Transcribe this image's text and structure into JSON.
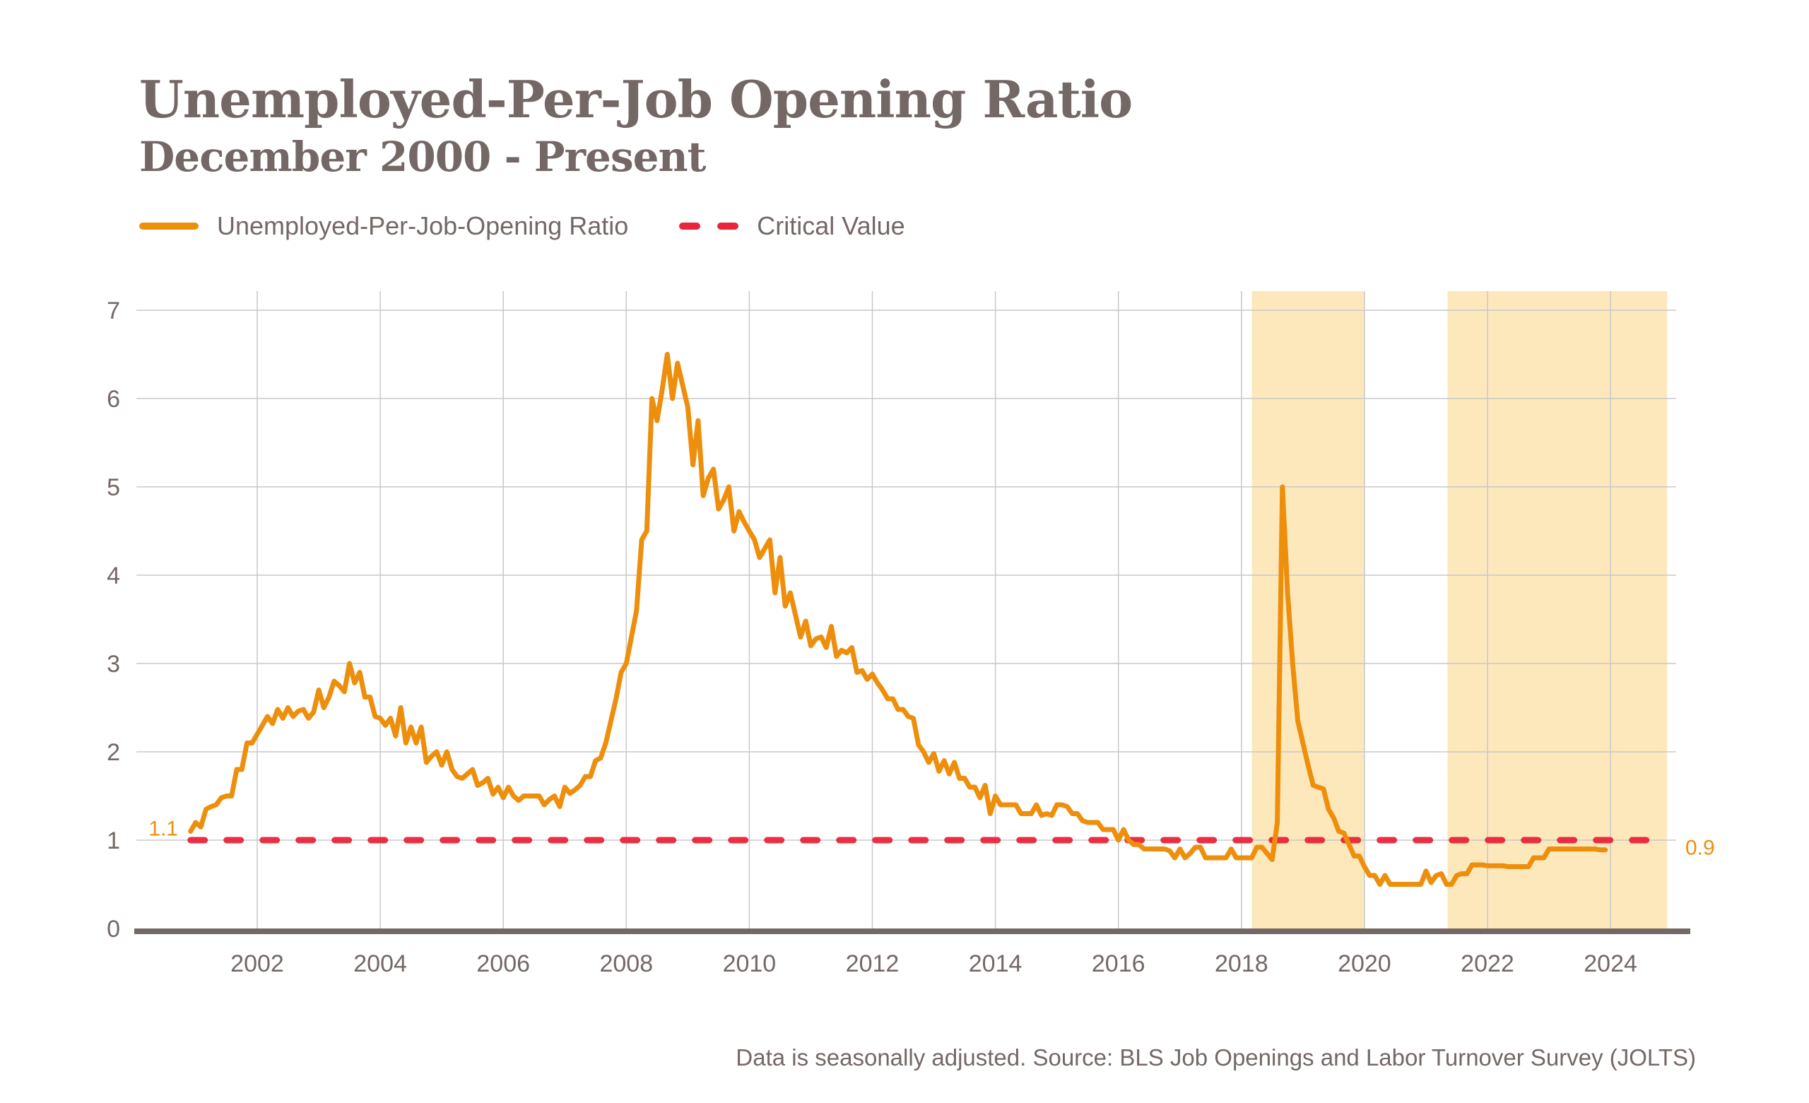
{
  "header": {
    "title": "Unemployed-Per-Job Opening Ratio",
    "subtitle": "December 2000 - Present"
  },
  "legend": {
    "items": [
      {
        "label": "Unemployed-Per-Job-Opening Ratio",
        "style": "solid",
        "color": "#ED8F0C"
      },
      {
        "label": "Critical Value",
        "style": "dashed",
        "color": "#E8253A"
      }
    ]
  },
  "footer": {
    "source": "Data is seasonally adjusted. Source: BLS Job Openings and Labor Turnover Survey (JOLTS)"
  },
  "colors": {
    "series": "#ED8F0C",
    "critical": "#E8253A",
    "shade": "#FDE8BC",
    "grid": "#C8C8C8",
    "axis": "#746866",
    "text": "#746866"
  },
  "chart_data": {
    "type": "line",
    "title": "Unemployed-Per-Job Opening Ratio",
    "subtitle": "December 2000 - Present",
    "xlabel": "",
    "ylabel": "",
    "xlim": [
      2000.75,
      2025.05
    ],
    "ylim": [
      0,
      7
    ],
    "x_ticks": [
      2002,
      2004,
      2006,
      2008,
      2010,
      2012,
      2014,
      2016,
      2018,
      2020,
      2022,
      2024
    ],
    "x_tick_labels": [
      "2002",
      "2004",
      "2006",
      "2008",
      "2010",
      "2012",
      "2014",
      "2016",
      "2018",
      "2020",
      "2022",
      "2024"
    ],
    "y_ticks": [
      0,
      1,
      2,
      3,
      4,
      5,
      6,
      7
    ],
    "y_tick_labels": [
      "0",
      "1",
      "2",
      "3",
      "4",
      "5",
      "6",
      "7"
    ],
    "grid": true,
    "legend_position": "top-left",
    "start": {
      "year": 2000,
      "month": 12
    },
    "frequency": "monthly",
    "series": [
      {
        "name": "Unemployed-Per-Job-Opening Ratio",
        "values": [
          1.1,
          1.2,
          1.15,
          1.35,
          1.38,
          1.4,
          1.48,
          1.5,
          1.5,
          1.8,
          1.8,
          2.1,
          2.1,
          2.2,
          2.3,
          2.4,
          2.32,
          2.48,
          2.38,
          2.5,
          2.4,
          2.46,
          2.48,
          2.38,
          2.45,
          2.7,
          2.5,
          2.62,
          2.8,
          2.75,
          2.68,
          3.0,
          2.78,
          2.9,
          2.62,
          2.62,
          2.4,
          2.38,
          2.3,
          2.38,
          2.18,
          2.5,
          2.1,
          2.28,
          2.1,
          2.28,
          1.88,
          1.95,
          2.0,
          1.85,
          2.0,
          1.8,
          1.72,
          1.7,
          1.75,
          1.8,
          1.62,
          1.65,
          1.7,
          1.52,
          1.6,
          1.48,
          1.6,
          1.5,
          1.45,
          1.5,
          1.5,
          1.5,
          1.5,
          1.4,
          1.46,
          1.5,
          1.38,
          1.6,
          1.53,
          1.57,
          1.62,
          1.72,
          1.72,
          1.9,
          1.93,
          2.1,
          2.35,
          2.6,
          2.9,
          3.0,
          3.3,
          3.6,
          4.4,
          4.5,
          6.0,
          5.75,
          6.1,
          6.5,
          6.0,
          6.4,
          6.15,
          5.9,
          5.25,
          5.75,
          4.9,
          5.1,
          5.2,
          4.75,
          4.85,
          5.0,
          4.5,
          4.72,
          4.6,
          4.5,
          4.4,
          4.2,
          4.3,
          4.4,
          3.8,
          4.2,
          3.65,
          3.8,
          3.55,
          3.3,
          3.48,
          3.2,
          3.28,
          3.3,
          3.18,
          3.42,
          3.08,
          3.15,
          3.12,
          3.18,
          2.9,
          2.92,
          2.82,
          2.88,
          2.78,
          2.7,
          2.6,
          2.6,
          2.48,
          2.48,
          2.4,
          2.38,
          2.08,
          2.0,
          1.88,
          1.98,
          1.78,
          1.9,
          1.75,
          1.88,
          1.7,
          1.7,
          1.6,
          1.6,
          1.48,
          1.62,
          1.3,
          1.5,
          1.4,
          1.4,
          1.4,
          1.4,
          1.3,
          1.3,
          1.3,
          1.4,
          1.28,
          1.3,
          1.28,
          1.4,
          1.4,
          1.38,
          1.3,
          1.3,
          1.22,
          1.2,
          1.2,
          1.2,
          1.12,
          1.12,
          1.12,
          1.0,
          1.12,
          1.0,
          0.95,
          0.95,
          0.9,
          0.9,
          0.9,
          0.9,
          0.9,
          0.88,
          0.8,
          0.9,
          0.8,
          0.85,
          0.92,
          0.92,
          0.8,
          0.8,
          0.8,
          0.8,
          0.8,
          0.9,
          0.8,
          0.8,
          0.8,
          0.8,
          0.92,
          0.92,
          0.85,
          0.78,
          1.2,
          5.0,
          3.8,
          3.0,
          2.35,
          2.1,
          1.85,
          1.62,
          1.6,
          1.58,
          1.35,
          1.25,
          1.1,
          1.08,
          0.95,
          0.82,
          0.82,
          0.7,
          0.6,
          0.6,
          0.5,
          0.6,
          0.5,
          0.5,
          0.5,
          0.5,
          0.5,
          0.5,
          0.5,
          0.65,
          0.52,
          0.6,
          0.62,
          0.5,
          0.5,
          0.6,
          0.62,
          0.62,
          0.72,
          0.72,
          0.72,
          0.71,
          0.71,
          0.71,
          0.71,
          0.7,
          0.7,
          0.7,
          0.7,
          0.7,
          0.8,
          0.8,
          0.8,
          0.9,
          0.9,
          0.9,
          0.9,
          0.9,
          0.9,
          0.9,
          0.9,
          0.9,
          0.9,
          0.89,
          0.89
        ]
      },
      {
        "name": "Critical Value",
        "constant": 1.0
      }
    ],
    "shaded_periods": [
      {
        "start": 2018.17,
        "end": 2020.0
      },
      {
        "start": 2021.35,
        "end": 2024.92
      }
    ],
    "annotations": [
      {
        "text": "1.1",
        "at": "start",
        "value": 1.1
      },
      {
        "text": "0.9",
        "at": "end",
        "value": 0.9
      }
    ]
  }
}
